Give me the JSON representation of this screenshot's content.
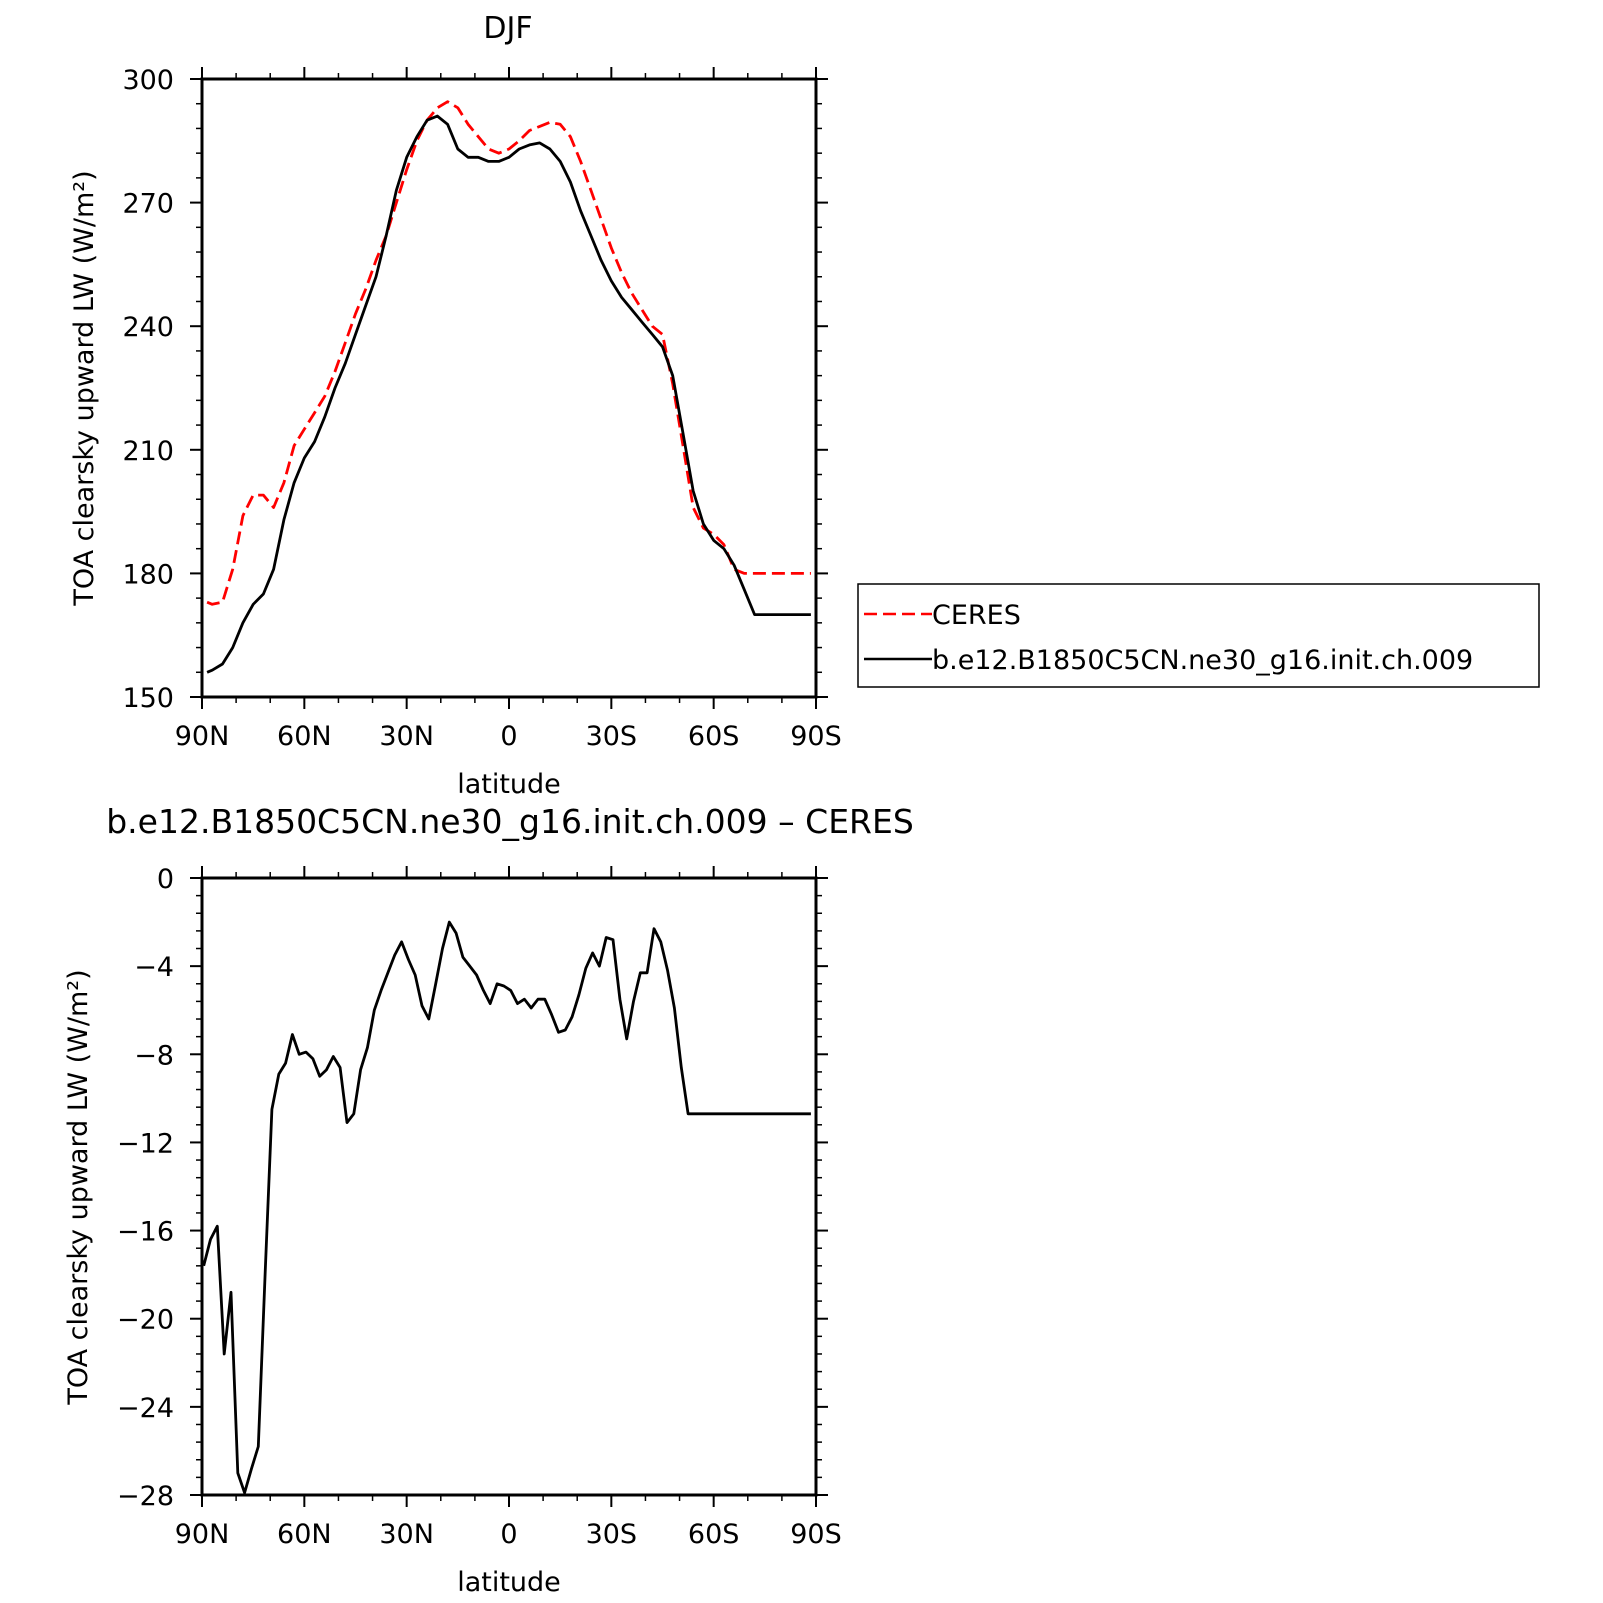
{
  "colors": {
    "ceres": "#ff0000",
    "model": "#000000",
    "axis": "#000000"
  },
  "chart_data": [
    {
      "type": "line",
      "title": "DJF",
      "xlabel": "latitude",
      "ylabel": "TOA clearsky upward LW (W/m²)",
      "xlim": [
        90,
        -90
      ],
      "ylim": [
        150,
        300
      ],
      "x_tick_values": [
        90,
        60,
        30,
        0,
        -30,
        -60,
        -90
      ],
      "x_tick_labels": [
        "90N",
        "60N",
        "30N",
        "0",
        "30S",
        "60S",
        "90S"
      ],
      "y_tick_values": [
        150,
        180,
        210,
        240,
        270,
        300
      ],
      "y_tick_labels": [
        "150",
        "180",
        "210",
        "240",
        "270",
        "300"
      ],
      "legend": {
        "position": "right",
        "entries": [
          "CERES",
          "b.e12.B1850C5CN.ne30_g16.init.ch.009"
        ]
      },
      "series": [
        {
          "name": "CERES",
          "style": "dashed",
          "x": [
            88.5,
            87,
            84,
            81,
            78,
            75,
            72,
            69,
            66,
            63,
            60,
            57,
            54,
            51,
            48,
            45,
            42,
            39,
            36,
            33,
            30,
            27,
            24,
            21,
            18,
            15,
            12,
            9,
            6,
            3,
            0,
            -3,
            -6,
            -9,
            -12,
            -15,
            -18,
            -21,
            -24,
            -27,
            -30,
            -33,
            -36,
            -39,
            -42,
            -45,
            -48,
            -51,
            -54,
            -57,
            -60,
            -63,
            -66,
            -69,
            -72,
            -75,
            -78,
            -81,
            -84,
            -87,
            -88.5
          ],
          "y": [
            173,
            172.5,
            173,
            181,
            194,
            199,
            199,
            196,
            202,
            211,
            215,
            219,
            223,
            229,
            236,
            243,
            249,
            256,
            262,
            270,
            278,
            285,
            290,
            293,
            294.5,
            293,
            289,
            286,
            283,
            282,
            283,
            285,
            287.5,
            288.5,
            289.5,
            289,
            286,
            280,
            273,
            266,
            259,
            253,
            248,
            244,
            240,
            238,
            226,
            211,
            196,
            191,
            189.5,
            187,
            181,
            180,
            180,
            180,
            180,
            180,
            180,
            180,
            180
          ]
        },
        {
          "name": "b.e12.B1850C5CN.ne30_g16.init.ch.009",
          "style": "solid",
          "x": [
            88.5,
            87,
            84,
            81,
            78,
            75,
            72,
            69,
            66,
            63,
            60,
            57,
            54,
            51,
            48,
            45,
            42,
            39,
            36,
            33,
            30,
            27,
            24,
            21,
            18,
            15,
            12,
            9,
            6,
            3,
            0,
            -3,
            -6,
            -9,
            -12,
            -15,
            -18,
            -21,
            -24,
            -27,
            -30,
            -33,
            -36,
            -39,
            -42,
            -45,
            -48,
            -51,
            -54,
            -57,
            -60,
            -63,
            -66,
            -69,
            -72,
            -75,
            -78,
            -81,
            -84,
            -87,
            -88.5
          ],
          "y": [
            156,
            156.5,
            158,
            162,
            168,
            172.5,
            175,
            181,
            193,
            202,
            208,
            212,
            218,
            225,
            231,
            238,
            245,
            252,
            262,
            273,
            281,
            286,
            290,
            291,
            289,
            283,
            281,
            281,
            280,
            280,
            281,
            283,
            284,
            284.5,
            283,
            280,
            275,
            268,
            262,
            256,
            251,
            247,
            244,
            241,
            238,
            235,
            228,
            214,
            200,
            192,
            188,
            186,
            182,
            176,
            170,
            170,
            170,
            170,
            170,
            170,
            170
          ]
        }
      ]
    },
    {
      "type": "line",
      "title": "b.e12.B1850C5CN.ne30_g16.init.ch.009 – CERES",
      "xlabel": "latitude",
      "ylabel": "TOA clearsky upward LW (W/m²)",
      "xlim": [
        90,
        -90
      ],
      "ylim": [
        -28,
        0
      ],
      "x_tick_values": [
        90,
        60,
        30,
        0,
        -30,
        -60,
        -90
      ],
      "x_tick_labels": [
        "90N",
        "60N",
        "30N",
        "0",
        "30S",
        "60S",
        "90S"
      ],
      "y_tick_values": [
        0,
        -4,
        -8,
        -12,
        -16,
        -20,
        -24,
        -28
      ],
      "y_tick_labels": [
        "0",
        "−4",
        "−8",
        "−12",
        "−16",
        "−20",
        "−24",
        "−28"
      ],
      "series": [
        {
          "style": "solid",
          "x": [
            89.5,
            87.5,
            85.5,
            83.5,
            81.5,
            79.5,
            77.5,
            75.5,
            73.5,
            71.5,
            69.5,
            67.5,
            65.5,
            63.5,
            61.5,
            59.5,
            57.5,
            55.5,
            53.5,
            51.5,
            49.5,
            47.5,
            45.5,
            43.5,
            41.5,
            39.5,
            37.5,
            35.5,
            33.5,
            31.5,
            29.5,
            27.5,
            25.5,
            23.5,
            21.5,
            19.5,
            17.5,
            15.5,
            13.5,
            11.5,
            9.5,
            7.5,
            5.5,
            3.5,
            1.5,
            -0.5,
            -2.5,
            -4.5,
            -6.5,
            -8.5,
            -10.5,
            -12.5,
            -14.5,
            -16.5,
            -18.5,
            -20.5,
            -22.5,
            -24.5,
            -26.5,
            -28.5,
            -30.5,
            -32.5,
            -34.5,
            -36.5,
            -38.5,
            -40.5,
            -42.5,
            -44.5,
            -46.5,
            -48.5,
            -50.5,
            -52.5,
            -54.5,
            -56.5,
            -58.5,
            -60.5,
            -62.5,
            -64.5,
            -66.5,
            -68.5,
            -70.5,
            -72.5,
            -74.5,
            -76.5,
            -78.5,
            -80.5,
            -82.5,
            -84.5,
            -86.5,
            -88.5
          ],
          "y": [
            -17.6,
            -16.4,
            -15.8,
            -21.6,
            -18.8,
            -27,
            -27.9,
            -26.8,
            -25.8,
            -18,
            -10.5,
            -8.9,
            -8.4,
            -7.1,
            -8,
            -7.9,
            -8.2,
            -9,
            -8.7,
            -8.1,
            -8.6,
            -11.1,
            -10.7,
            -8.7,
            -7.7,
            -6,
            -5.1,
            -4.3,
            -3.5,
            -2.9,
            -3.7,
            -4.4,
            -5.8,
            -6.4,
            -4.8,
            -3.2,
            -2,
            -2.5,
            -3.6,
            -4,
            -4.4,
            -5.1,
            -5.7,
            -4.8,
            -4.9,
            -5.1,
            -5.7,
            -5.5,
            -5.9,
            -5.5,
            -5.5,
            -6.2,
            -7,
            -6.9,
            -6.3,
            -5.3,
            -4.1,
            -3.4,
            -4,
            -2.7,
            -2.8,
            -5.5,
            -7.3,
            -5.6,
            -4.3,
            -4.3,
            -2.3,
            -2.9,
            -4.2,
            -5.9,
            -8.6,
            -10.7,
            -10.7,
            -10.7,
            -10.7,
            -10.7,
            -10.7,
            -10.7,
            -10.7,
            -10.7,
            -10.7,
            -10.7,
            -10.7,
            -10.7,
            -10.7,
            -10.7,
            -10.7,
            -10.7,
            -10.7,
            -10.7
          ]
        }
      ]
    }
  ]
}
